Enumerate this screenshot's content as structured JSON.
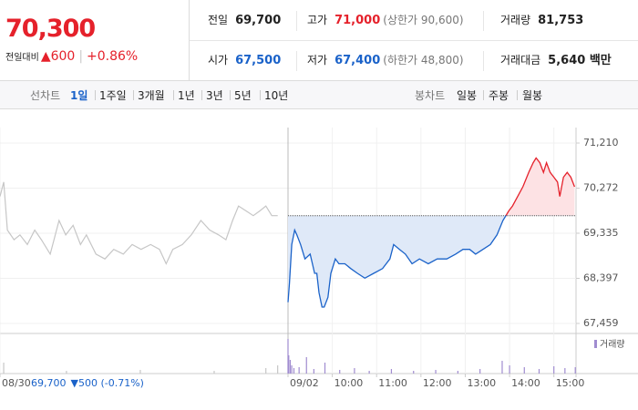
{
  "header": {
    "price": "70,300",
    "change_label": "전일대비",
    "change": "▲600",
    "rate": "+0.86%"
  },
  "info": [
    {
      "label": "전일",
      "value": "69,700",
      "tone": "plain"
    },
    {
      "label": "고가",
      "value": "71,000",
      "note": "(상한가 90,600)",
      "tone": "up"
    },
    {
      "label": "거래량",
      "value": "81,753",
      "tone": "plain"
    },
    {
      "label": "시가",
      "value": "67,500",
      "tone": "down"
    },
    {
      "label": "저가",
      "value": "67,400",
      "note": "(하한가 48,800)",
      "tone": "down"
    },
    {
      "label": "거래대금",
      "value": "5,640 백만",
      "tone": "plain"
    }
  ],
  "tabs": {
    "line": {
      "label": "선차트",
      "items": [
        "1일",
        "1주일",
        "3개월",
        "1년",
        "3년",
        "5년",
        "10년"
      ],
      "selected": 0
    },
    "candle": {
      "label": "봉차트",
      "items": [
        "일봉",
        "주봉",
        "월봉"
      ]
    }
  },
  "chart_data": {
    "type": "line",
    "xlim": [
      -390,
      390
    ],
    "xticks": [
      {
        "value": -390,
        "label": "08/30"
      },
      {
        "value": 0,
        "label": "09/02"
      },
      {
        "value": 60,
        "label": "10:00"
      },
      {
        "value": 120,
        "label": "11:00"
      },
      {
        "value": 180,
        "label": "12:00"
      },
      {
        "value": 240,
        "label": "13:00"
      },
      {
        "value": 300,
        "label": "14:00"
      },
      {
        "value": 360,
        "label": "15:00"
      }
    ],
    "ylim": [
      67459,
      71210
    ],
    "yticks": [
      {
        "value": 71210,
        "label": "71,210"
      },
      {
        "value": 70272,
        "label": "70,272"
      },
      {
        "value": 69335,
        "label": "69,335"
      },
      {
        "value": 68397,
        "label": "68,397"
      },
      {
        "value": 67459,
        "label": "67,459"
      }
    ],
    "grid": true,
    "baseline": 69700,
    "up_color": "#e5212b",
    "down_color": "#1a62c9",
    "series": [
      {
        "color": "#c6c6c6",
        "x": [
          -390,
          -385,
          -380,
          -371,
          -363,
          -353,
          -343,
          -334,
          -322,
          -310,
          -301,
          -291,
          -281,
          -273,
          -260,
          -248,
          -236,
          -223,
          -211,
          -199,
          -186,
          -174,
          -165,
          -156,
          -143,
          -131,
          -118,
          -106,
          -94,
          -84,
          -75,
          -67,
          -57,
          -47,
          -38,
          -30,
          -22,
          -14
        ],
        "values": [
          70100,
          70400,
          69400,
          69200,
          69300,
          69100,
          69400,
          69200,
          68900,
          69600,
          69300,
          69500,
          69100,
          69300,
          68900,
          68800,
          69000,
          68900,
          69100,
          69000,
          69100,
          69000,
          68700,
          69000,
          69100,
          69300,
          69600,
          69400,
          69300,
          69200,
          69600,
          69900,
          69800,
          69700,
          69800,
          69900,
          69700,
          69700
        ]
      },
      {
        "color": "split",
        "x": [
          0,
          2,
          5,
          9,
          12,
          17,
          23,
          30,
          36,
          39,
          42,
          46,
          49,
          54,
          58,
          64,
          69,
          77,
          85,
          94,
          104,
          116,
          128,
          138,
          143,
          151,
          159,
          168,
          178,
          190,
          202,
          215,
          227,
          237,
          246,
          254,
          264,
          274,
          283,
          291,
          299,
          304,
          311,
          318,
          326,
          332,
          336,
          341,
          346,
          350,
          355,
          360,
          365,
          368,
          373,
          378,
          383,
          388
        ],
        "values": [
          67900,
          68300,
          69100,
          69400,
          69300,
          69100,
          68800,
          68900,
          68500,
          68500,
          68100,
          67800,
          67800,
          68000,
          68500,
          68800,
          68700,
          68700,
          68600,
          68500,
          68400,
          68500,
          68600,
          68800,
          69100,
          69000,
          68900,
          68700,
          68800,
          68700,
          68800,
          68800,
          68900,
          69000,
          69000,
          68900,
          69000,
          69100,
          69300,
          69600,
          69800,
          69900,
          70100,
          70300,
          70600,
          70800,
          70900,
          70800,
          70600,
          70800,
          70600,
          70500,
          70400,
          70100,
          70500,
          70600,
          70500,
          70300
        ]
      }
    ],
    "volume": {
      "label": "거래량",
      "color": "#a08cd0",
      "prev_color": "#c6c6c6",
      "ylim": [
        0,
        4000
      ],
      "x": [
        -385,
        -300,
        -200,
        -100,
        -30,
        -14,
        0,
        1,
        3,
        5,
        8,
        15,
        25,
        35,
        50,
        70,
        90,
        110,
        140,
        170,
        200,
        230,
        260,
        290,
        300,
        320,
        340,
        360,
        375,
        389
      ],
      "values": [
        1200,
        300,
        400,
        300,
        600,
        900,
        3800,
        2000,
        1500,
        900,
        600,
        700,
        1800,
        500,
        1200,
        400,
        600,
        300,
        500,
        300,
        400,
        300,
        500,
        1400,
        900,
        700,
        500,
        800,
        600,
        700
      ]
    },
    "prev_summary": {
      "price": "69,700",
      "change": "▼500 (-0.71%)"
    }
  }
}
